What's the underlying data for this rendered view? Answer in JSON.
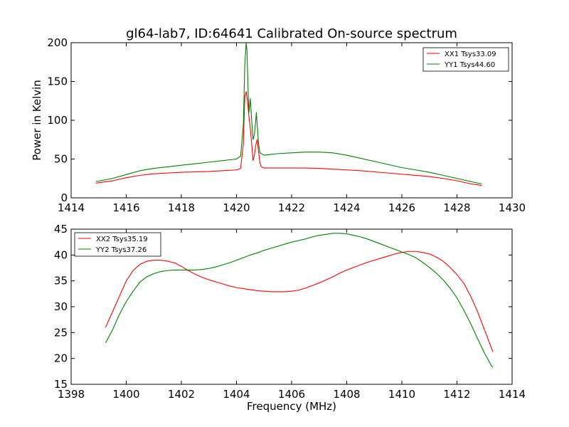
{
  "chart_data": [
    {
      "type": "line",
      "title": "gl64-lab7, ID:64641 Calibrated On-source spectrum",
      "xlabel": "",
      "ylabel": "Power in Kelvin",
      "xlim": [
        1414,
        1430
      ],
      "ylim": [
        0,
        200
      ],
      "xticks": [
        1414,
        1416,
        1418,
        1420,
        1422,
        1424,
        1426,
        1428,
        1430
      ],
      "yticks": [
        0,
        50,
        100,
        150,
        200
      ],
      "grid": false,
      "legend_position": "top-right",
      "series": [
        {
          "name": "XX1 Tsys33.09",
          "color": "#ff0000",
          "points": [
            [
              1414.9,
              19
            ],
            [
              1415.5,
              22
            ],
            [
              1416,
              26
            ],
            [
              1416.5,
              29
            ],
            [
              1417,
              31
            ],
            [
              1417.5,
              32
            ],
            [
              1418,
              33
            ],
            [
              1418.5,
              33.5
            ],
            [
              1419,
              34
            ],
            [
              1419.5,
              35
            ],
            [
              1420,
              36
            ],
            [
              1420.15,
              38
            ],
            [
              1420.25,
              70
            ],
            [
              1420.3,
              130
            ],
            [
              1420.35,
              137
            ],
            [
              1420.4,
              125
            ],
            [
              1420.45,
              105
            ],
            [
              1420.5,
              90
            ],
            [
              1420.55,
              70
            ],
            [
              1420.6,
              48
            ],
            [
              1420.65,
              55
            ],
            [
              1420.7,
              68
            ],
            [
              1420.75,
              75
            ],
            [
              1420.8,
              60
            ],
            [
              1420.85,
              45
            ],
            [
              1420.9,
              40
            ],
            [
              1421,
              38.5
            ],
            [
              1421.5,
              38.5
            ],
            [
              1422,
              38.5
            ],
            [
              1422.5,
              38.5
            ],
            [
              1423,
              38
            ],
            [
              1423.5,
              37
            ],
            [
              1424,
              36
            ],
            [
              1424.5,
              35
            ],
            [
              1425,
              33.5
            ],
            [
              1425.5,
              32
            ],
            [
              1426,
              30.5
            ],
            [
              1426.5,
              29
            ],
            [
              1427,
              27.5
            ],
            [
              1427.5,
              25
            ],
            [
              1428,
              22
            ],
            [
              1428.5,
              18
            ],
            [
              1428.9,
              16
            ]
          ]
        },
        {
          "name": "YY1 Tsys44.60",
          "color": "#008000",
          "points": [
            [
              1414.9,
              21
            ],
            [
              1415.5,
              25
            ],
            [
              1416,
              30
            ],
            [
              1416.5,
              35
            ],
            [
              1417,
              38
            ],
            [
              1417.5,
              40
            ],
            [
              1418,
              42
            ],
            [
              1418.5,
              44
            ],
            [
              1419,
              46
            ],
            [
              1419.5,
              48
            ],
            [
              1420,
              50
            ],
            [
              1420.15,
              54
            ],
            [
              1420.25,
              95
            ],
            [
              1420.3,
              170
            ],
            [
              1420.35,
              200
            ],
            [
              1420.38,
              190
            ],
            [
              1420.42,
              140
            ],
            [
              1420.45,
              110
            ],
            [
              1420.5,
              128
            ],
            [
              1420.55,
              100
            ],
            [
              1420.6,
              75
            ],
            [
              1420.65,
              82
            ],
            [
              1420.7,
              100
            ],
            [
              1420.72,
              110
            ],
            [
              1420.75,
              95
            ],
            [
              1420.8,
              70
            ],
            [
              1420.85,
              58
            ],
            [
              1421,
              55
            ],
            [
              1421.5,
              57
            ],
            [
              1422,
              58
            ],
            [
              1422.5,
              59
            ],
            [
              1423,
              59
            ],
            [
              1423.5,
              58
            ],
            [
              1424,
              55
            ],
            [
              1424.5,
              51
            ],
            [
              1425,
              47
            ],
            [
              1425.5,
              43
            ],
            [
              1426,
              39
            ],
            [
              1426.5,
              36
            ],
            [
              1427,
              33
            ],
            [
              1427.5,
              29
            ],
            [
              1428,
              25
            ],
            [
              1428.5,
              21
            ],
            [
              1428.9,
              18
            ]
          ]
        }
      ]
    },
    {
      "type": "line",
      "title": "",
      "xlabel": "Frequency (MHz)",
      "ylabel": "",
      "xlim": [
        1398,
        1414
      ],
      "ylim": [
        15,
        45
      ],
      "xticks": [
        1398,
        1400,
        1402,
        1404,
        1406,
        1408,
        1410,
        1412,
        1414
      ],
      "yticks": [
        15,
        20,
        25,
        30,
        35,
        40,
        45
      ],
      "grid": false,
      "legend_position": "top-left",
      "series": [
        {
          "name": "XX2 Tsys35.19",
          "color": "#ff0000",
          "points": [
            [
              1399.25,
              26
            ],
            [
              1399.5,
              29
            ],
            [
              1399.75,
              32
            ],
            [
              1400,
              35
            ],
            [
              1400.25,
              37
            ],
            [
              1400.5,
              38.2
            ],
            [
              1400.75,
              38.8
            ],
            [
              1401,
              39
            ],
            [
              1401.25,
              39
            ],
            [
              1401.5,
              38.8
            ],
            [
              1401.75,
              38.5
            ],
            [
              1402,
              37.8
            ],
            [
              1402.25,
              37
            ],
            [
              1402.5,
              36.3
            ],
            [
              1402.75,
              35.7
            ],
            [
              1403,
              35.2
            ],
            [
              1403.25,
              34.8
            ],
            [
              1403.5,
              34.4
            ],
            [
              1403.75,
              34
            ],
            [
              1404,
              33.7
            ],
            [
              1404.25,
              33.5
            ],
            [
              1404.5,
              33.3
            ],
            [
              1404.75,
              33.1
            ],
            [
              1405,
              33
            ],
            [
              1405.25,
              32.9
            ],
            [
              1405.5,
              32.9
            ],
            [
              1405.75,
              32.9
            ],
            [
              1406,
              33
            ],
            [
              1406.25,
              33.2
            ],
            [
              1406.5,
              33.6
            ],
            [
              1406.75,
              34.1
            ],
            [
              1407,
              34.6
            ],
            [
              1407.25,
              35.2
            ],
            [
              1407.5,
              35.8
            ],
            [
              1407.75,
              36.5
            ],
            [
              1408,
              37.1
            ],
            [
              1408.25,
              37.6
            ],
            [
              1408.5,
              38.1
            ],
            [
              1408.75,
              38.6
            ],
            [
              1409,
              39
            ],
            [
              1409.25,
              39.4
            ],
            [
              1409.5,
              39.8
            ],
            [
              1409.75,
              40.2
            ],
            [
              1410,
              40.5
            ],
            [
              1410.25,
              40.7
            ],
            [
              1410.5,
              40.7
            ],
            [
              1410.75,
              40.5
            ],
            [
              1411,
              40.2
            ],
            [
              1411.25,
              39.6
            ],
            [
              1411.5,
              38.8
            ],
            [
              1411.75,
              37.6
            ],
            [
              1412,
              36.2
            ],
            [
              1412.25,
              34.5
            ],
            [
              1412.5,
              32
            ],
            [
              1412.75,
              29
            ],
            [
              1413,
              25.5
            ],
            [
              1413.25,
              22
            ],
            [
              1413.3,
              21.3
            ]
          ]
        },
        {
          "name": "YY2 Tsys37.26",
          "color": "#008000",
          "points": [
            [
              1399.25,
              23
            ],
            [
              1399.5,
              25.5
            ],
            [
              1399.75,
              28.5
            ],
            [
              1400,
              31
            ],
            [
              1400.25,
              33
            ],
            [
              1400.5,
              34.8
            ],
            [
              1400.75,
              35.8
            ],
            [
              1401,
              36.4
            ],
            [
              1401.25,
              36.8
            ],
            [
              1401.5,
              37
            ],
            [
              1401.75,
              37.1
            ],
            [
              1402,
              37.1
            ],
            [
              1402.25,
              37.1
            ],
            [
              1402.5,
              37.1
            ],
            [
              1402.75,
              37.2
            ],
            [
              1403,
              37.4
            ],
            [
              1403.25,
              37.7
            ],
            [
              1403.5,
              38.1
            ],
            [
              1403.75,
              38.5
            ],
            [
              1404,
              39
            ],
            [
              1404.25,
              39.5
            ],
            [
              1404.5,
              40
            ],
            [
              1404.75,
              40.4
            ],
            [
              1405,
              40.9
            ],
            [
              1405.25,
              41.3
            ],
            [
              1405.5,
              41.7
            ],
            [
              1405.75,
              42.1
            ],
            [
              1406,
              42.5
            ],
            [
              1406.25,
              42.8
            ],
            [
              1406.5,
              43.1
            ],
            [
              1406.75,
              43.5
            ],
            [
              1407,
              43.8
            ],
            [
              1407.25,
              44
            ],
            [
              1407.5,
              44.2
            ],
            [
              1407.75,
              44.2
            ],
            [
              1408,
              44.1
            ],
            [
              1408.25,
              43.8
            ],
            [
              1408.5,
              43.5
            ],
            [
              1408.75,
              43.1
            ],
            [
              1409,
              42.6
            ],
            [
              1409.25,
              42.1
            ],
            [
              1409.5,
              41.6
            ],
            [
              1409.75,
              41.1
            ],
            [
              1410,
              40.6
            ],
            [
              1410.25,
              40.1
            ],
            [
              1410.5,
              39.5
            ],
            [
              1410.75,
              38.6
            ],
            [
              1411,
              37.6
            ],
            [
              1411.25,
              36.5
            ],
            [
              1411.5,
              35.2
            ],
            [
              1411.75,
              33.6
            ],
            [
              1412,
              31.7
            ],
            [
              1412.25,
              29.3
            ],
            [
              1412.5,
              26.7
            ],
            [
              1412.75,
              23.8
            ],
            [
              1413,
              21
            ],
            [
              1413.25,
              18.6
            ],
            [
              1413.3,
              18.3
            ]
          ]
        }
      ]
    }
  ]
}
